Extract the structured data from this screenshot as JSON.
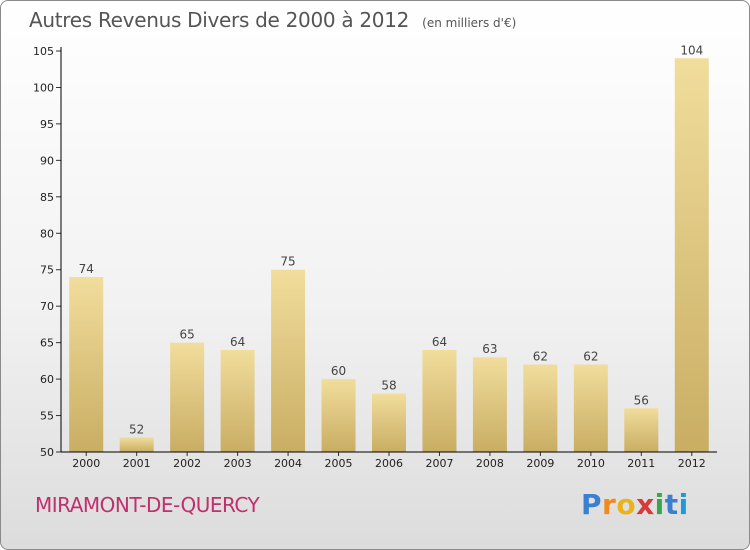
{
  "title": {
    "main": "Autres Revenus Divers de 2000 à 2012",
    "unit": "(en milliers d'€)"
  },
  "commune": "MIRAMONT-DE-QUERCY",
  "logo": {
    "name": "Proxiti"
  },
  "colors": {
    "bar_top": "#f1dd9c",
    "bar_bottom": "#c9ad63",
    "axis": "#000000",
    "grid_tick": "#333333",
    "commune": "#c0306e"
  },
  "chart_data": {
    "type": "bar",
    "title": "Autres Revenus Divers de 2000 à 2012",
    "categories": [
      "2000",
      "2001",
      "2002",
      "2003",
      "2004",
      "2005",
      "2006",
      "2007",
      "2008",
      "2009",
      "2010",
      "2011",
      "2012"
    ],
    "values": [
      74,
      52,
      65,
      64,
      75,
      60,
      58,
      64,
      63,
      62,
      62,
      56,
      104
    ],
    "ylim": [
      50,
      105
    ],
    "yticks": [
      50,
      55,
      60,
      65,
      70,
      75,
      80,
      85,
      90,
      95,
      100,
      105
    ],
    "grid": false,
    "data_labels": true
  }
}
